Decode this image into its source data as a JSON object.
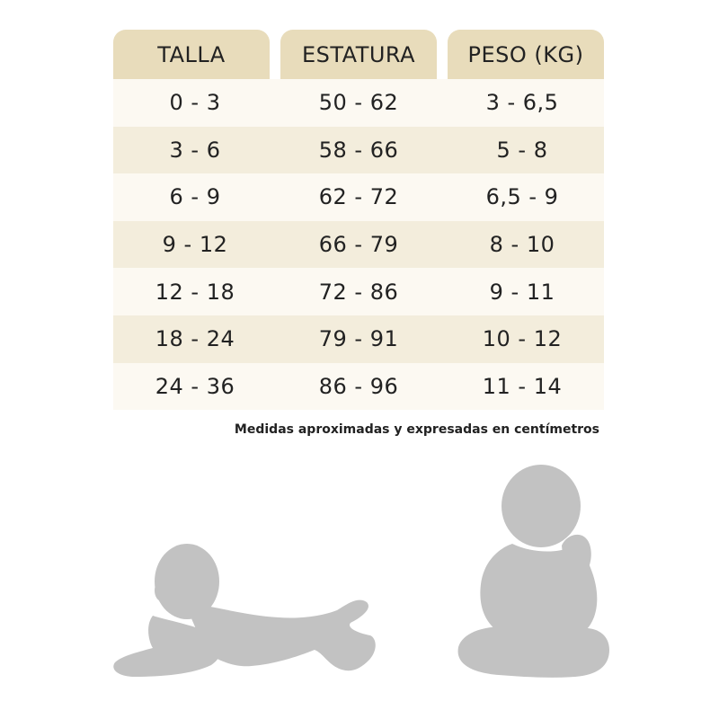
{
  "colors": {
    "header_bg": "#e8dcbb",
    "row_light": "#fcf9f2",
    "row_dark": "#f3eddc",
    "silhouette": "#c2c2c2",
    "text": "#222222"
  },
  "table": {
    "headers": [
      "TALLA",
      "ESTATURA",
      "PESO (KG)"
    ],
    "rows": [
      [
        "0 - 3",
        "50 - 62",
        "3 - 6,5"
      ],
      [
        "3 - 6",
        "58 - 66",
        "5 - 8"
      ],
      [
        "6 - 9",
        "62 - 72",
        "6,5 - 9"
      ],
      [
        "9 - 12",
        "66 - 79",
        "8 - 10"
      ],
      [
        "12 - 18",
        "72 - 86",
        "9 - 11"
      ],
      [
        "18 - 24",
        "79 - 91",
        "10 - 12"
      ],
      [
        "24 - 36",
        "86 - 96",
        "11 - 14"
      ]
    ]
  },
  "note": "Medidas aproximadas y expresadas en centímetros",
  "illustrations": {
    "left": "lying-baby-silhouette",
    "right": "sitting-baby-silhouette"
  }
}
